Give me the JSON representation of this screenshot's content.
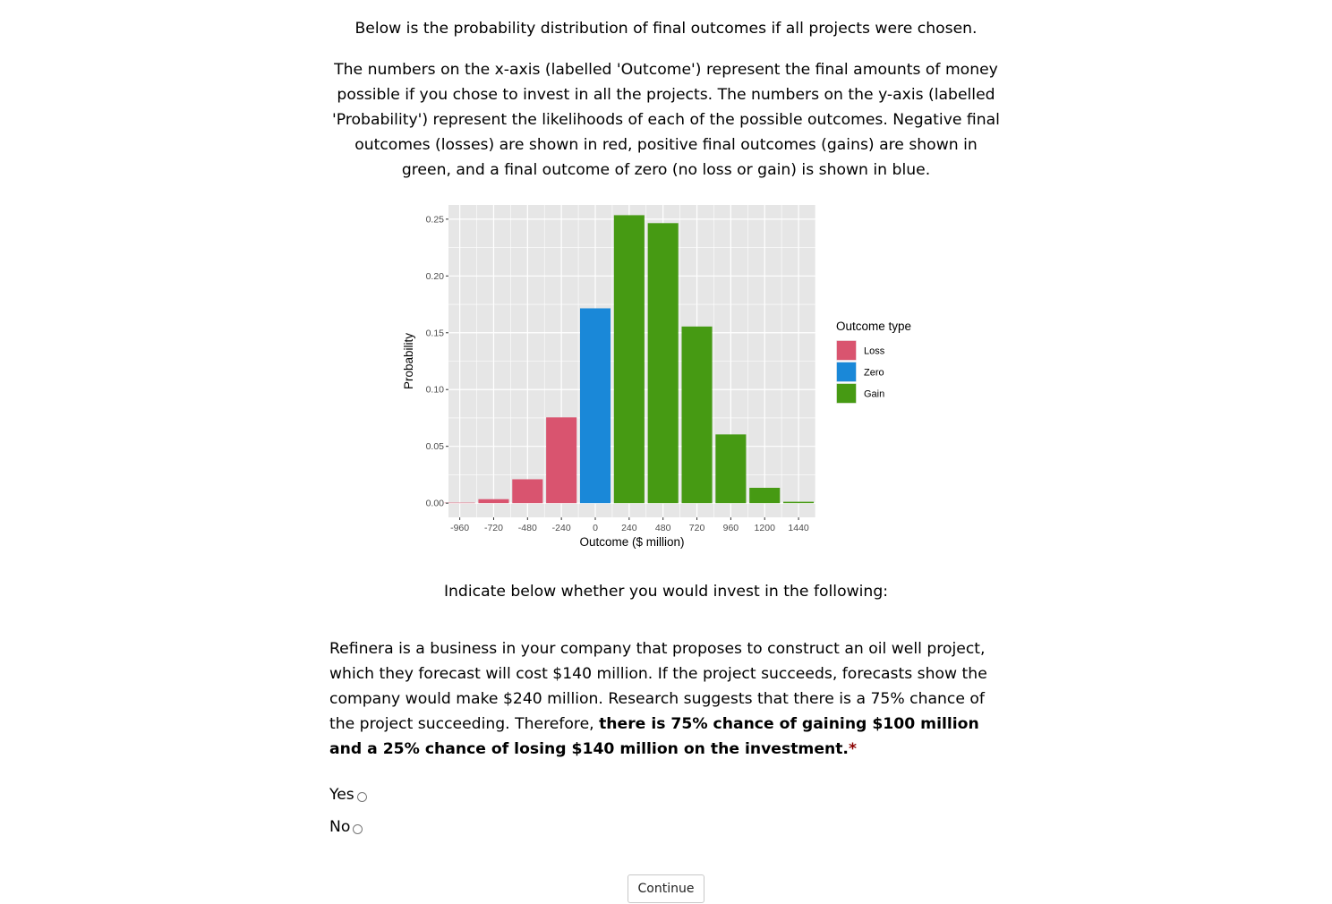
{
  "intro": {
    "line1": "Below is the probability distribution of final outcomes if all projects were chosen.",
    "paragraph": "The numbers on the x-axis (labelled 'Outcome') represent the final amounts of money possible if you chose to invest in all the projects. The numbers on the y-axis (labelled 'Probability') represent the likelihoods of each of the possible outcomes. Negative final outcomes (losses) are shown in red, positive final outcomes (gains) are shown in green, and a final outcome of zero (no loss or gain) is shown in blue."
  },
  "chart_data": {
    "type": "bar",
    "xlabel": "Outcome ($ million)",
    "ylabel": "Probability",
    "ylim": [
      -0.0125,
      0.2625
    ],
    "xlim": [
      -1040,
      1560
    ],
    "yticks": [
      "0.00",
      "0.05",
      "0.10",
      "0.15",
      "0.20",
      "0.25"
    ],
    "xticks": [
      "-960",
      "-720",
      "-480",
      "-240",
      "0",
      "240",
      "480",
      "720",
      "960",
      "1200",
      "1440"
    ],
    "grid": true,
    "legend_position": "right",
    "legend_title": "Outcome type",
    "legend": [
      {
        "label": "Loss",
        "color": "#d9546f"
      },
      {
        "label": "Zero",
        "color": "#1a88d8"
      },
      {
        "label": "Gain",
        "color": "#469a13"
      }
    ],
    "x": [
      -960,
      -720,
      -480,
      -240,
      0,
      240,
      480,
      720,
      960,
      1200,
      1440
    ],
    "values": [
      0.0004,
      0.0035,
      0.021,
      0.0755,
      0.1715,
      0.2535,
      0.2465,
      0.1555,
      0.0605,
      0.0135,
      0.0012
    ],
    "outcome_type": [
      "Loss",
      "Loss",
      "Loss",
      "Loss",
      "Zero",
      "Gain",
      "Gain",
      "Gain",
      "Gain",
      "Gain",
      "Gain"
    ],
    "panel_background": "#e6e6e6",
    "grid_color": "#ffffff"
  },
  "instruction": "Indicate below whether you would invest in the following:",
  "question": {
    "text": "Refinera is a business in your company that proposes to construct an oil well project, which they forecast will cost $140 million. If the project succeeds, forecasts show the company would make $240 million. Research suggests that there is a 75% chance of the project succeeding. Therefore, ",
    "bold_text": "there is 75% chance of gaining $100 million and a 25% chance of losing $140 million on the investment.",
    "required_marker": "*"
  },
  "options": {
    "yes": "Yes",
    "no": "No"
  },
  "continue_label": "Continue"
}
